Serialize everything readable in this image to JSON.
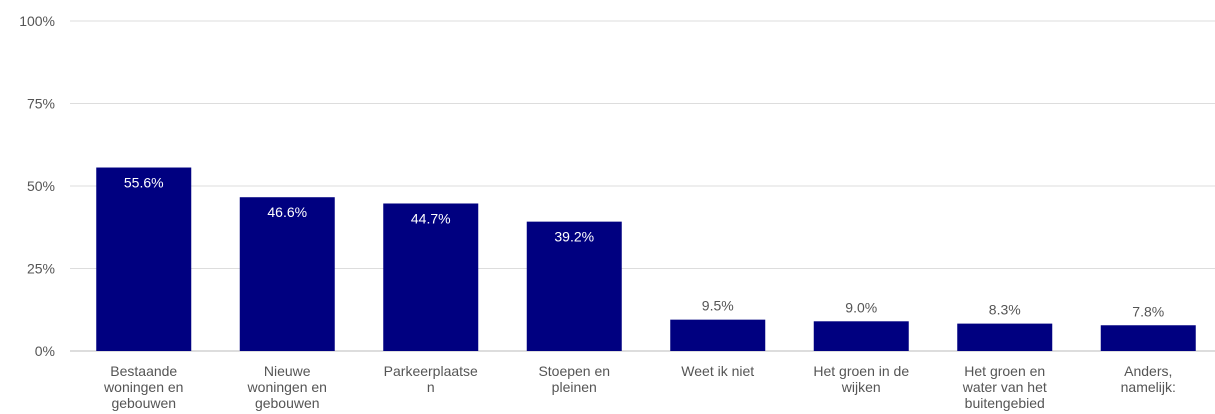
{
  "chart_data": {
    "type": "bar",
    "categories": [
      [
        "Bestaande",
        "woningen en",
        "gebouwen"
      ],
      [
        "Nieuwe",
        "woningen en",
        "gebouwen"
      ],
      [
        "Parkeerplaatse",
        "n"
      ],
      [
        "Stoepen en",
        "pleinen"
      ],
      [
        "Weet ik niet"
      ],
      [
        "Het groen in de",
        "wijken"
      ],
      [
        "Het groen en",
        "water van het",
        "buitengebied"
      ],
      [
        "Anders,",
        "namelijk:"
      ]
    ],
    "values": [
      55.6,
      46.6,
      44.7,
      39.2,
      9.5,
      9.0,
      8.3,
      7.8
    ],
    "value_labels": [
      "55.6%",
      "46.6%",
      "44.7%",
      "39.2%",
      "9.5%",
      "9.0%",
      "8.3%",
      "7.8%"
    ],
    "yticks": [
      0,
      25,
      50,
      75,
      100
    ],
    "ytick_labels": [
      "0%",
      "25%",
      "50%",
      "75%",
      "100%"
    ],
    "ylim": [
      0,
      100
    ],
    "grid": true,
    "colors": {
      "bar": "#000080",
      "grid": "#dddddd",
      "axis": "#bbbbbb",
      "label_inside": "#ffffff",
      "label_outside": "#555555"
    }
  }
}
